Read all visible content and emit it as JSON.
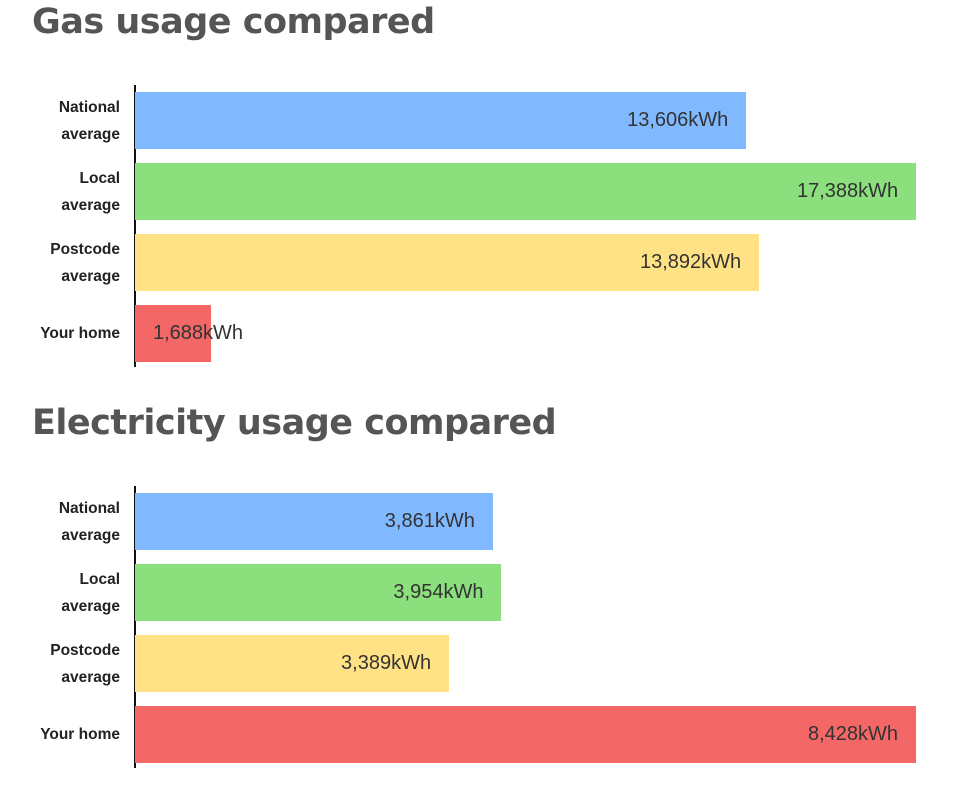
{
  "chart_data": [
    {
      "type": "bar",
      "title": "Gas usage compared",
      "categories": [
        "National average",
        "Local average",
        "Postcode average",
        "Your home"
      ],
      "values": [
        13606,
        17388,
        13892,
        1688
      ],
      "value_labels": [
        "13,606kWh",
        "17,388kWh",
        "13,892kWh",
        "1,688kWh"
      ],
      "colors": [
        "#80b9ff",
        "#8bdf7c",
        "#ffe285",
        "#f36767"
      ],
      "xlim": [
        0,
        17388
      ]
    },
    {
      "type": "bar",
      "title": "Electricity usage compared",
      "categories": [
        "National average",
        "Local average",
        "Postcode average",
        "Your home"
      ],
      "values": [
        3861,
        3954,
        3389,
        8428
      ],
      "value_labels": [
        "3,861kWh",
        "3,954kWh",
        "3,389kWh",
        "8,428kWh"
      ],
      "colors": [
        "#80b9ff",
        "#8bdf7c",
        "#ffe285",
        "#f36767"
      ],
      "xlim": [
        0,
        8428
      ]
    }
  ]
}
